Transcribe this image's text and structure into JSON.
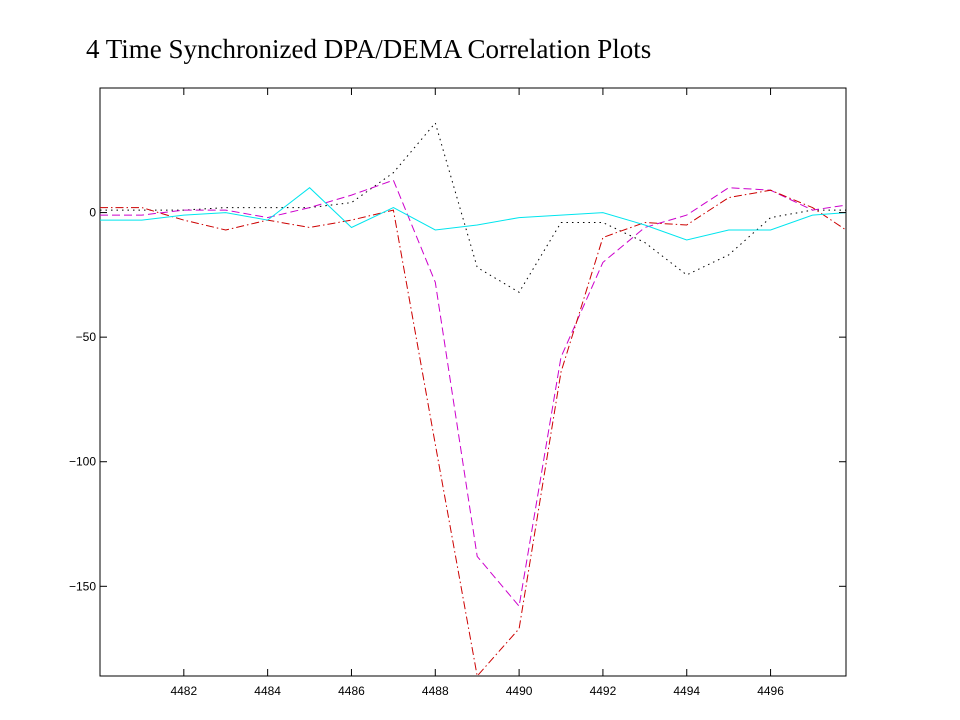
{
  "slide": {
    "title": "4 Time Synchronized DPA/DEMA Correlation  Plots"
  },
  "chart_data": {
    "type": "line",
    "title": "",
    "xlabel": "",
    "ylabel": "",
    "xlim": [
      4480,
      4497.8
    ],
    "ylim": [
      -186,
      50
    ],
    "grid": false,
    "legend": "none",
    "x_ticks": [
      {
        "value": 4482,
        "label": "4482"
      },
      {
        "value": 4484,
        "label": "4484"
      },
      {
        "value": 4486,
        "label": "4486"
      },
      {
        "value": 4488,
        "label": "4488"
      },
      {
        "value": 4490,
        "label": "4490"
      },
      {
        "value": 4492,
        "label": "4492"
      },
      {
        "value": 4494,
        "label": "4494"
      },
      {
        "value": 4496,
        "label": "4496"
      }
    ],
    "y_ticks": [
      {
        "value": 0,
        "label": "0"
      },
      {
        "value": -50,
        "label": "−50"
      },
      {
        "value": -100,
        "label": "−100"
      },
      {
        "value": -150,
        "label": "−150"
      }
    ],
    "x": [
      4480,
      4481,
      4482,
      4483,
      4484,
      4485,
      4486,
      4487,
      4488,
      4489,
      4490,
      4491,
      4492,
      4493,
      4494,
      4495,
      4496,
      4497,
      4497.8
    ],
    "series": [
      {
        "color": "#000000",
        "dash": "dotted",
        "values": [
          1,
          1,
          1,
          2,
          2,
          2,
          4,
          16,
          36,
          -22,
          -32,
          -4,
          -4,
          -12,
          -25,
          -17,
          -2,
          1,
          1
        ]
      },
      {
        "color": "#cc00cc",
        "dash": "dashed",
        "values": [
          -1,
          -1,
          1,
          1,
          -2,
          2,
          7,
          13,
          -28,
          -138,
          -158,
          -58,
          -20,
          -6,
          -1,
          10,
          9,
          1,
          3
        ]
      },
      {
        "color": "#cc0000",
        "dash": "dashdot",
        "values": [
          2,
          2,
          -3,
          -7,
          -3,
          -6,
          -3,
          1,
          -93,
          -186,
          -167,
          -64,
          -10,
          -4,
          -5,
          6,
          9,
          2,
          -7
        ]
      },
      {
        "color": "#00e5ee",
        "dash": "solid",
        "values": [
          -3,
          -3,
          -1,
          0,
          -3,
          10,
          -6,
          2,
          -7,
          -5,
          -2,
          -1,
          0,
          -5,
          -11,
          -7,
          -7,
          -1,
          0
        ]
      }
    ]
  }
}
